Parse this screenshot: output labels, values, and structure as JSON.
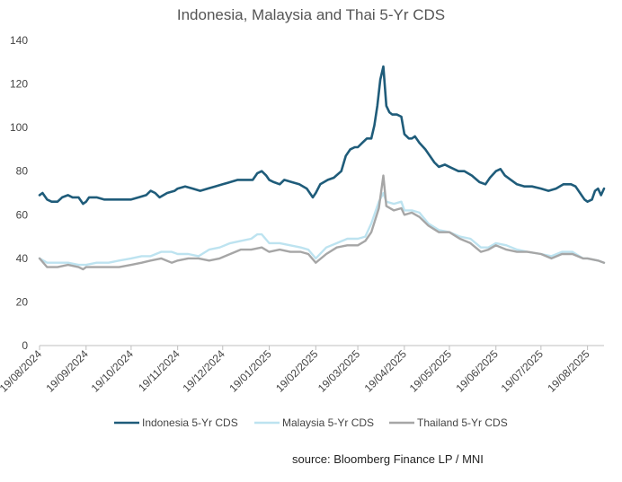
{
  "chart_data": {
    "type": "line",
    "title": "Indonesia, Malaysia and Thai 5-Yr CDS",
    "xlabel": "",
    "ylabel": "",
    "ylim": [
      0,
      140
    ],
    "yticks": [
      0,
      20,
      40,
      60,
      80,
      100,
      120,
      140
    ],
    "x_start": "19/08/2024",
    "x_end": "30/08/2025",
    "x_ticks": [
      "19/08/2024",
      "19/09/2024",
      "19/10/2024",
      "19/11/2024",
      "19/12/2024",
      "19/01/2025",
      "19/02/2025",
      "19/03/2025",
      "19/04/2025",
      "19/05/2025",
      "19/06/2025",
      "19/07/2025",
      "19/08/2025"
    ],
    "legend_position": "bottom",
    "series": [
      {
        "name": "Indonesia 5-Yr CDS",
        "color": "#1f5c7a",
        "points": [
          [
            "19/08/2024",
            69
          ],
          [
            "21/08/2024",
            70
          ],
          [
            "24/08/2024",
            67
          ],
          [
            "27/08/2024",
            66
          ],
          [
            "31/08/2024",
            66
          ],
          [
            "03/09/2024",
            68
          ],
          [
            "07/09/2024",
            69
          ],
          [
            "10/09/2024",
            68
          ],
          [
            "14/09/2024",
            68
          ],
          [
            "17/09/2024",
            65
          ],
          [
            "19/09/2024",
            66
          ],
          [
            "21/09/2024",
            68
          ],
          [
            "26/09/2024",
            68
          ],
          [
            "01/10/2024",
            67
          ],
          [
            "06/10/2024",
            67
          ],
          [
            "11/10/2024",
            67
          ],
          [
            "16/10/2024",
            67
          ],
          [
            "19/10/2024",
            67
          ],
          [
            "24/10/2024",
            68
          ],
          [
            "29/10/2024",
            69
          ],
          [
            "01/11/2024",
            71
          ],
          [
            "04/11/2024",
            70
          ],
          [
            "07/11/2024",
            68
          ],
          [
            "12/11/2024",
            70
          ],
          [
            "17/11/2024",
            71
          ],
          [
            "19/11/2024",
            72
          ],
          [
            "24/11/2024",
            73
          ],
          [
            "29/11/2024",
            72
          ],
          [
            "04/12/2024",
            71
          ],
          [
            "09/12/2024",
            72
          ],
          [
            "14/12/2024",
            73
          ],
          [
            "19/12/2024",
            74
          ],
          [
            "24/12/2024",
            75
          ],
          [
            "29/12/2024",
            76
          ],
          [
            "03/01/2025",
            76
          ],
          [
            "08/01/2025",
            76
          ],
          [
            "11/01/2025",
            79
          ],
          [
            "14/01/2025",
            80
          ],
          [
            "17/01/2025",
            78
          ],
          [
            "19/01/2025",
            76
          ],
          [
            "22/01/2025",
            75
          ],
          [
            "26/01/2025",
            74
          ],
          [
            "29/01/2025",
            76
          ],
          [
            "03/02/2025",
            75
          ],
          [
            "08/02/2025",
            74
          ],
          [
            "13/02/2025",
            72
          ],
          [
            "17/02/2025",
            68
          ],
          [
            "19/02/2025",
            70
          ],
          [
            "22/02/2025",
            74
          ],
          [
            "27/02/2025",
            76
          ],
          [
            "03/03/2025",
            77
          ],
          [
            "08/03/2025",
            80
          ],
          [
            "11/03/2025",
            87
          ],
          [
            "14/03/2025",
            90
          ],
          [
            "17/03/2025",
            91
          ],
          [
            "19/03/2025",
            91
          ],
          [
            "22/03/2025",
            93
          ],
          [
            "25/03/2025",
            95
          ],
          [
            "28/03/2025",
            95
          ],
          [
            "30/03/2025",
            101
          ],
          [
            "01/04/2025",
            110
          ],
          [
            "03/04/2025",
            122
          ],
          [
            "05/04/2025",
            128
          ],
          [
            "07/04/2025",
            110
          ],
          [
            "09/04/2025",
            107
          ],
          [
            "11/04/2025",
            106
          ],
          [
            "14/04/2025",
            106
          ],
          [
            "17/04/2025",
            105
          ],
          [
            "19/04/2025",
            97
          ],
          [
            "22/04/2025",
            95
          ],
          [
            "24/04/2025",
            95
          ],
          [
            "26/04/2025",
            96
          ],
          [
            "29/04/2025",
            93
          ],
          [
            "03/05/2025",
            90
          ],
          [
            "06/05/2025",
            87
          ],
          [
            "09/05/2025",
            84
          ],
          [
            "12/05/2025",
            82
          ],
          [
            "16/05/2025",
            83
          ],
          [
            "19/05/2025",
            82
          ],
          [
            "22/05/2025",
            81
          ],
          [
            "25/05/2025",
            80
          ],
          [
            "29/05/2025",
            80
          ],
          [
            "03/06/2025",
            78
          ],
          [
            "08/06/2025",
            75
          ],
          [
            "12/06/2025",
            74
          ],
          [
            "15/06/2025",
            77
          ],
          [
            "19/06/2025",
            80
          ],
          [
            "22/06/2025",
            81
          ],
          [
            "25/06/2025",
            78
          ],
          [
            "29/06/2025",
            76
          ],
          [
            "03/07/2025",
            74
          ],
          [
            "08/07/2025",
            73
          ],
          [
            "13/07/2025",
            73
          ],
          [
            "19/07/2025",
            72
          ],
          [
            "24/07/2025",
            71
          ],
          [
            "29/07/2025",
            72
          ],
          [
            "03/08/2025",
            74
          ],
          [
            "08/08/2025",
            74
          ],
          [
            "11/08/2025",
            73
          ],
          [
            "14/08/2025",
            70
          ],
          [
            "17/08/2025",
            67
          ],
          [
            "19/08/2025",
            66
          ],
          [
            "22/08/2025",
            67
          ],
          [
            "24/08/2025",
            71
          ],
          [
            "26/08/2025",
            72
          ],
          [
            "28/08/2025",
            69
          ],
          [
            "30/08/2025",
            72
          ]
        ]
      },
      {
        "name": "Malaysia 5-Yr CDS",
        "color": "#bde3f0",
        "points": [
          [
            "19/08/2024",
            40
          ],
          [
            "24/08/2024",
            38
          ],
          [
            "31/08/2024",
            38
          ],
          [
            "07/09/2024",
            38
          ],
          [
            "14/09/2024",
            37
          ],
          [
            "19/09/2024",
            37
          ],
          [
            "26/09/2024",
            38
          ],
          [
            "04/10/2024",
            38
          ],
          [
            "11/10/2024",
            39
          ],
          [
            "19/10/2024",
            40
          ],
          [
            "26/10/2024",
            41
          ],
          [
            "01/11/2024",
            41
          ],
          [
            "08/11/2024",
            43
          ],
          [
            "15/11/2024",
            43
          ],
          [
            "19/11/2024",
            42
          ],
          [
            "26/11/2024",
            42
          ],
          [
            "03/12/2024",
            41
          ],
          [
            "10/12/2024",
            44
          ],
          [
            "17/12/2024",
            45
          ],
          [
            "24/12/2024",
            47
          ],
          [
            "31/12/2024",
            48
          ],
          [
            "07/01/2025",
            49
          ],
          [
            "11/01/2025",
            51
          ],
          [
            "14/01/2025",
            51
          ],
          [
            "19/01/2025",
            47
          ],
          [
            "26/01/2025",
            47
          ],
          [
            "02/02/2025",
            46
          ],
          [
            "09/02/2025",
            45
          ],
          [
            "14/02/2025",
            44
          ],
          [
            "19/02/2025",
            40
          ],
          [
            "26/02/2025",
            45
          ],
          [
            "05/03/2025",
            47
          ],
          [
            "12/03/2025",
            49
          ],
          [
            "19/03/2025",
            49
          ],
          [
            "24/03/2025",
            50
          ],
          [
            "28/03/2025",
            56
          ],
          [
            "02/04/2025",
            66
          ],
          [
            "05/04/2025",
            70
          ],
          [
            "07/04/2025",
            66
          ],
          [
            "12/04/2025",
            65
          ],
          [
            "17/04/2025",
            66
          ],
          [
            "19/04/2025",
            62
          ],
          [
            "24/04/2025",
            62
          ],
          [
            "29/04/2025",
            61
          ],
          [
            "05/05/2025",
            56
          ],
          [
            "12/05/2025",
            53
          ],
          [
            "19/05/2025",
            52
          ],
          [
            "26/05/2025",
            50
          ],
          [
            "02/06/2025",
            49
          ],
          [
            "09/06/2025",
            45
          ],
          [
            "14/06/2025",
            45
          ],
          [
            "19/06/2025",
            47
          ],
          [
            "26/06/2025",
            46
          ],
          [
            "03/07/2025",
            44
          ],
          [
            "10/07/2025",
            43
          ],
          [
            "19/07/2025",
            42
          ],
          [
            "26/07/2025",
            41
          ],
          [
            "02/08/2025",
            43
          ],
          [
            "09/08/2025",
            43
          ],
          [
            "16/08/2025",
            40
          ],
          [
            "19/08/2025",
            40
          ],
          [
            "26/08/2025",
            39
          ],
          [
            "30/08/2025",
            38
          ]
        ]
      },
      {
        "name": "Thailand 5-Yr CDS",
        "color": "#a6a6a6",
        "points": [
          [
            "19/08/2024",
            40
          ],
          [
            "24/08/2024",
            36
          ],
          [
            "31/08/2024",
            36
          ],
          [
            "07/09/2024",
            37
          ],
          [
            "14/09/2024",
            36
          ],
          [
            "17/09/2024",
            35
          ],
          [
            "19/09/2024",
            36
          ],
          [
            "26/09/2024",
            36
          ],
          [
            "04/10/2024",
            36
          ],
          [
            "11/10/2024",
            36
          ],
          [
            "19/10/2024",
            37
          ],
          [
            "26/10/2024",
            38
          ],
          [
            "01/11/2024",
            39
          ],
          [
            "08/11/2024",
            40
          ],
          [
            "15/11/2024",
            38
          ],
          [
            "19/11/2024",
            39
          ],
          [
            "26/11/2024",
            40
          ],
          [
            "03/12/2024",
            40
          ],
          [
            "10/12/2024",
            39
          ],
          [
            "17/12/2024",
            40
          ],
          [
            "24/12/2024",
            42
          ],
          [
            "31/12/2024",
            44
          ],
          [
            "07/01/2025",
            44
          ],
          [
            "14/01/2025",
            45
          ],
          [
            "19/01/2025",
            43
          ],
          [
            "26/01/2025",
            44
          ],
          [
            "02/02/2025",
            43
          ],
          [
            "09/02/2025",
            43
          ],
          [
            "14/02/2025",
            42
          ],
          [
            "19/02/2025",
            38
          ],
          [
            "26/02/2025",
            42
          ],
          [
            "05/03/2025",
            45
          ],
          [
            "12/03/2025",
            46
          ],
          [
            "19/03/2025",
            46
          ],
          [
            "24/03/2025",
            48
          ],
          [
            "28/03/2025",
            52
          ],
          [
            "02/04/2025",
            63
          ],
          [
            "05/04/2025",
            78
          ],
          [
            "07/04/2025",
            64
          ],
          [
            "12/04/2025",
            62
          ],
          [
            "17/04/2025",
            63
          ],
          [
            "19/04/2025",
            60
          ],
          [
            "24/04/2025",
            61
          ],
          [
            "29/04/2025",
            59
          ],
          [
            "05/05/2025",
            55
          ],
          [
            "12/05/2025",
            52
          ],
          [
            "19/05/2025",
            52
          ],
          [
            "26/05/2025",
            49
          ],
          [
            "02/06/2025",
            47
          ],
          [
            "09/06/2025",
            43
          ],
          [
            "14/06/2025",
            44
          ],
          [
            "19/06/2025",
            46
          ],
          [
            "26/06/2025",
            44
          ],
          [
            "03/07/2025",
            43
          ],
          [
            "10/07/2025",
            43
          ],
          [
            "19/07/2025",
            42
          ],
          [
            "26/07/2025",
            40
          ],
          [
            "02/08/2025",
            42
          ],
          [
            "09/08/2025",
            42
          ],
          [
            "16/08/2025",
            40
          ],
          [
            "19/08/2025",
            40
          ],
          [
            "26/08/2025",
            39
          ],
          [
            "30/08/2025",
            38
          ]
        ]
      }
    ]
  },
  "source_text": "source: Bloomberg Finance LP / MNI"
}
